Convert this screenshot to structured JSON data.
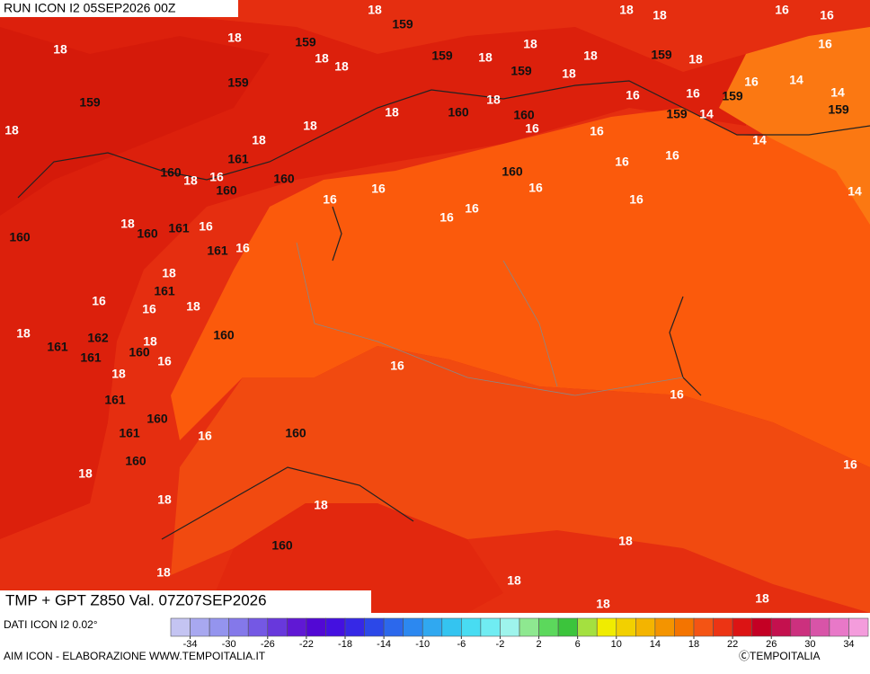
{
  "header": {
    "run": "RUN ICON I2 05SEP2026 00Z"
  },
  "footer": {
    "title": "TMP + GPT Z850 Val. 07Z07SEP2026",
    "source": "DATI ICON I2 0.02°",
    "credit": "AIM ICON - ELABORAZIONE WWW.TEMPOITALIA.IT",
    "copyright": "ⒸTEMPOITALIA"
  },
  "map_labels": [
    18,
    18,
    18,
    16,
    16,
    18,
    18,
    159,
    159,
    18,
    18,
    18,
    18,
    159,
    18,
    159,
    18,
    159,
    18,
    16,
    16,
    14,
    14,
    159,
    159,
    18,
    160,
    160,
    18,
    16,
    16,
    159,
    159,
    14,
    159,
    18,
    18,
    16,
    16,
    14,
    18,
    161,
    16,
    16,
    160,
    18,
    16,
    160,
    160,
    16,
    160,
    16,
    14,
    16,
    16,
    16,
    16,
    18,
    160,
    161,
    16,
    160,
    161,
    16,
    18,
    161,
    16,
    18,
    16,
    18,
    160,
    162,
    161,
    18,
    160,
    161,
    16,
    16,
    18,
    16,
    161,
    160,
    16,
    160,
    161,
    160,
    16,
    18,
    18,
    18,
    160,
    18,
    18,
    18,
    18,
    18
  ],
  "colorbar": {
    "lim": [
      -36,
      36
    ],
    "ticks": [
      -34,
      -30,
      -26,
      -22,
      -18,
      -14,
      -10,
      -6,
      -2,
      2,
      6,
      10,
      14,
      18,
      22,
      26,
      30,
      34
    ],
    "colors": [
      "#c4c4f2",
      "#a8a8f0",
      "#9494ee",
      "#8478ea",
      "#7458e4",
      "#6838dc",
      "#6018d4",
      "#5208d4",
      "#4410e0",
      "#3628e6",
      "#2c48e8",
      "#2c68ec",
      "#2c88f0",
      "#30a8f0",
      "#34c4f0",
      "#48dcf2",
      "#70ecf2",
      "#9ef4ec",
      "#8ee890",
      "#5cd85c",
      "#3cc43c",
      "#a4e040",
      "#f0ec00",
      "#f2d000",
      "#f4b400",
      "#f49400",
      "#f47400",
      "#f45414",
      "#ec3414",
      "#dc1414",
      "#c40024",
      "#c4104e",
      "#cc307e",
      "#d854a8",
      "#e878c8",
      "#f49cdc"
    ]
  }
}
